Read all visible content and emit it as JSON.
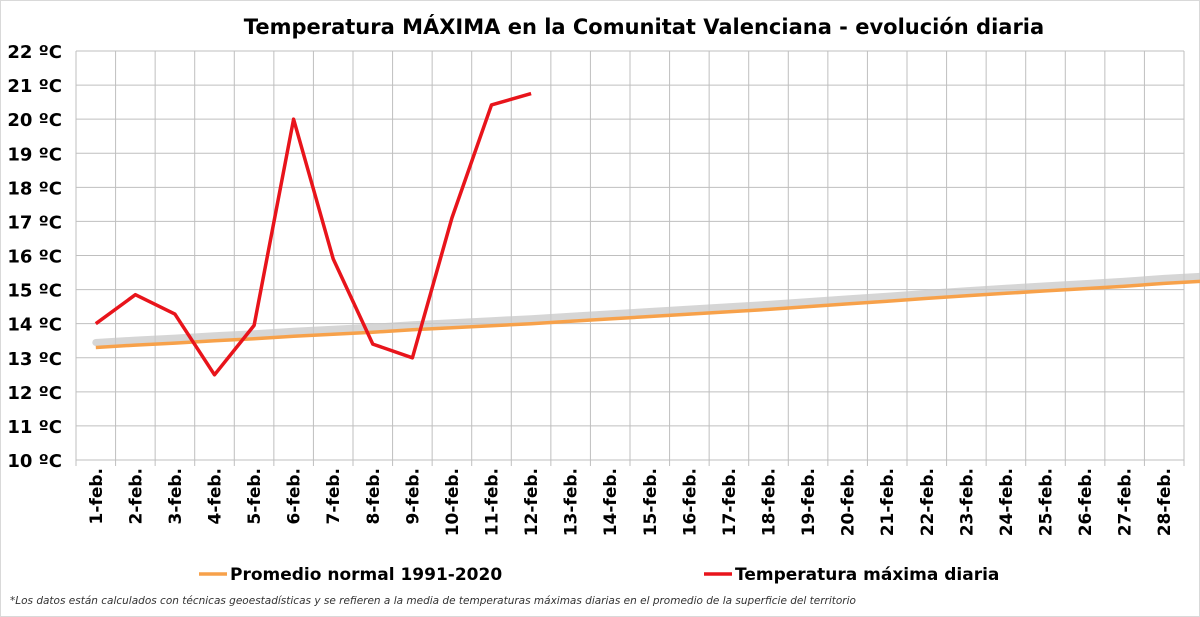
{
  "chart_data": {
    "type": "line",
    "title": "Temperatura MÁXIMA en la Comunitat Valenciana - evolución diaria",
    "categories": [
      "1-feb.",
      "2-feb.",
      "3-feb.",
      "4-feb.",
      "5-feb.",
      "6-feb.",
      "7-feb.",
      "8-feb.",
      "9-feb.",
      "10-feb.",
      "11-feb.",
      "12-feb.",
      "13-feb.",
      "14-feb.",
      "15-feb.",
      "16-feb.",
      "17-feb.",
      "18-feb.",
      "19-feb.",
      "20-feb.",
      "21-feb.",
      "22-feb.",
      "23-feb.",
      "24-feb.",
      "25-feb.",
      "26-feb.",
      "27-feb.",
      "28-feb."
    ],
    "y_ticks": [
      "10 ºC",
      "11 ºC",
      "12 ºC",
      "13 ºC",
      "14 ºC",
      "15 ºC",
      "16 ºC",
      "17 ºC",
      "18 ºC",
      "19 ºC",
      "20 ºC",
      "21 ºC",
      "22 ºC"
    ],
    "ylim": [
      10,
      22
    ],
    "grid": true,
    "legend_position": "bottom",
    "series": [
      {
        "name": "Promedio normal 1991-2020",
        "color": "#f7a14a",
        "x": [
          0.5,
          1.5,
          2.5,
          3.5,
          4.5,
          5.5,
          6.5,
          7.5,
          8.5,
          9.5,
          10.5,
          11.5,
          12.5,
          13.5,
          14.5,
          15.5,
          16.5,
          17.5,
          18.5,
          19.5,
          20.5,
          21.5,
          22.5,
          23.5,
          24.5,
          25.5,
          26.5,
          27.5,
          28.5
        ],
        "values": [
          13.3,
          13.37,
          13.43,
          13.5,
          13.56,
          13.63,
          13.69,
          13.75,
          13.82,
          13.88,
          13.94,
          14.0,
          14.07,
          14.14,
          14.21,
          14.28,
          14.35,
          14.42,
          14.5,
          14.58,
          14.66,
          14.74,
          14.82,
          14.89,
          14.96,
          15.03,
          15.1,
          15.18,
          15.25
        ]
      },
      {
        "name": "Temperatura máxima diaria",
        "color": "#e8141b",
        "x": [
          0.5,
          1.5,
          2.5,
          3.5,
          4.5,
          5.5,
          6.5,
          7.5,
          8.5,
          9.5,
          10.5,
          11.5
        ],
        "values": [
          14.0,
          14.85,
          14.28,
          12.5,
          13.95,
          20.0,
          15.9,
          13.4,
          13.0,
          17.1,
          20.42,
          20.75
        ]
      }
    ],
    "footnote": "*Los datos están calculados con técnicas geoestadísticas y se refieren a la media de temperaturas máximas diarias en el promedio de la superficie del territorio"
  }
}
